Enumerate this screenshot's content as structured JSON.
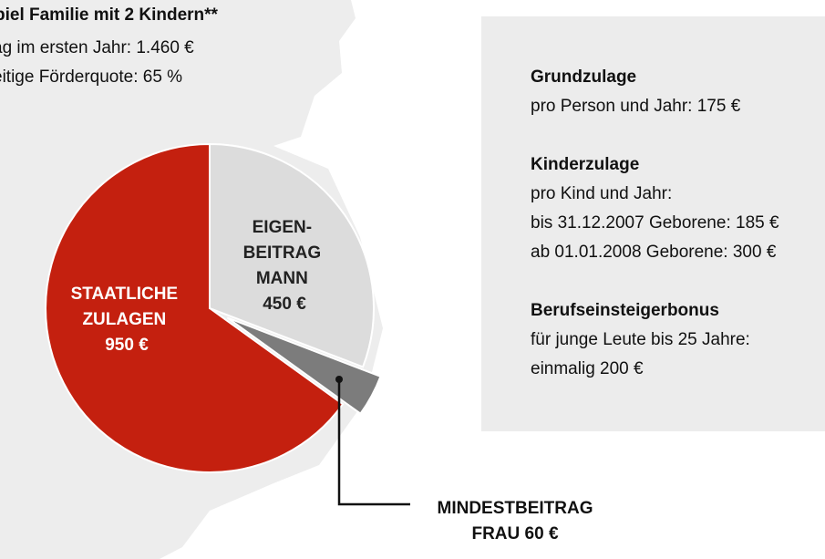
{
  "heading": "piel Familie mit 2 Kindern**",
  "sub_lines": [
    "ag im ersten Jahr: 1.460 €",
    "eitige Förderquote: 65 %"
  ],
  "colors": {
    "staatliche": "#c4200f",
    "eigenbeitrag": "#dcdcdc",
    "mindestbeitrag": "#7c7c7c",
    "map_background": "#ededed",
    "info_box": "#ececec"
  },
  "chart_data": {
    "type": "pie",
    "total": 1460,
    "slices": [
      {
        "key": "staatliche",
        "label_lines": [
          "STAATLICHE",
          "ZULAGEN",
          "950 €"
        ],
        "value": 950
      },
      {
        "key": "eigenbeitrag",
        "label_lines": [
          "EIGEN-",
          "BEITRAG",
          "MANN",
          "450 €"
        ],
        "value": 450
      },
      {
        "key": "mindestbeitrag",
        "label_lines": [
          "MINDESTBEITRAG",
          "FRAU 60 €"
        ],
        "value": 60,
        "exploded": true
      }
    ]
  },
  "info": {
    "sections": [
      {
        "title": "Grundzulage",
        "lines": [
          "pro Person und Jahr: 175 €"
        ]
      },
      {
        "title": "Kinderzulage",
        "lines": [
          "pro Kind und Jahr:",
          "bis 31.12.2007 Geborene: 185 €",
          "ab 01.01.2008 Geborene: 300 €"
        ]
      },
      {
        "title": "Berufseinsteigerbonus",
        "lines": [
          "für junge Leute bis 25 Jahre:",
          "einmalig 200 €"
        ]
      }
    ]
  }
}
